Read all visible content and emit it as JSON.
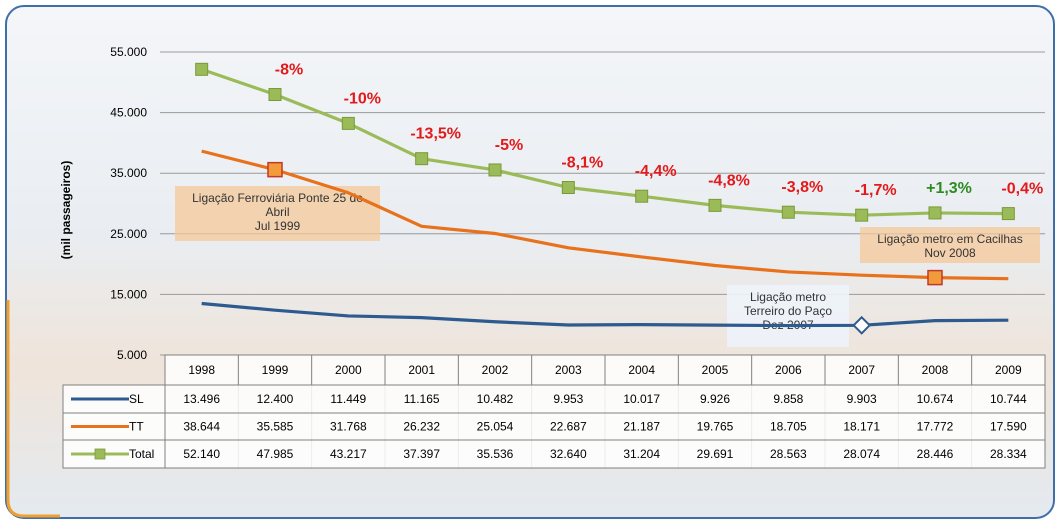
{
  "chart_data": {
    "type": "line",
    "y_label": "(mil passageiros)",
    "categories": [
      "1998",
      "1999",
      "2000",
      "2001",
      "2002",
      "2003",
      "2004",
      "2005",
      "2006",
      "2007",
      "2008",
      "2009"
    ],
    "ylim": [
      5000,
      55000
    ],
    "yticks": [
      {
        "value": 5000,
        "label": "5.000"
      },
      {
        "value": 15000,
        "label": "15.000"
      },
      {
        "value": 25000,
        "label": "25.000"
      },
      {
        "value": 35000,
        "label": "35.000"
      },
      {
        "value": 45000,
        "label": "45.000"
      },
      {
        "value": 55000,
        "label": "55.000"
      }
    ],
    "grid": true,
    "series": [
      {
        "name": "SL",
        "color": "#2e5b8f",
        "values": [
          13496,
          12400,
          11449,
          11165,
          10482,
          9953,
          10017,
          9926,
          9858,
          9903,
          10674,
          10744
        ],
        "value_labels": [
          "13.496",
          "12.400",
          "11.449",
          "11.165",
          "10.482",
          "9.953",
          "10.017",
          "9.926",
          "9.858",
          "9.903",
          "10.674",
          "10.744"
        ]
      },
      {
        "name": "TT",
        "color": "#e8711c",
        "values": [
          38644,
          35585,
          31768,
          26232,
          25054,
          22687,
          21187,
          19765,
          18705,
          18171,
          17772,
          17590
        ],
        "value_labels": [
          "38.644",
          "35.585",
          "31.768",
          "26.232",
          "25.054",
          "22.687",
          "21.187",
          "19.765",
          "18.705",
          "18.171",
          "17.772",
          "17.590"
        ]
      },
      {
        "name": "Total",
        "color": "#9bbb59",
        "values": [
          52140,
          47985,
          43217,
          37397,
          35536,
          32640,
          31204,
          29691,
          28563,
          28074,
          28446,
          28334
        ],
        "value_labels": [
          "52.140",
          "47.985",
          "43.217",
          "37.397",
          "35.536",
          "32.640",
          "31.204",
          "29.691",
          "28.563",
          "28.074",
          "28.446",
          "28.334"
        ]
      }
    ],
    "change_labels": [
      null,
      "-8%",
      "-10%",
      "-13,5%",
      "-5%",
      "-8,1%",
      "-4,4%",
      "-4,8%",
      "-3,8%",
      "-1,7%",
      "+1,3%",
      "-0,4%"
    ],
    "change_label_colors": [
      null,
      "#e31a1c",
      "#e31a1c",
      "#e31a1c",
      "#e31a1c",
      "#e31a1c",
      "#e31a1c",
      "#e31a1c",
      "#e31a1c",
      "#e31a1c",
      "#2e8b22",
      "#e31a1c"
    ],
    "annotations": [
      {
        "lines": [
          "Ligação Ferroviária Ponte 25 de",
          "Abril",
          "Jul 1999"
        ]
      },
      {
        "lines": [
          "Ligação metro em Cacilhas",
          "Nov 2008"
        ]
      },
      {
        "lines": [
          "Ligação metro",
          "Terreiro do Paço",
          "Dez 2007"
        ]
      }
    ]
  }
}
